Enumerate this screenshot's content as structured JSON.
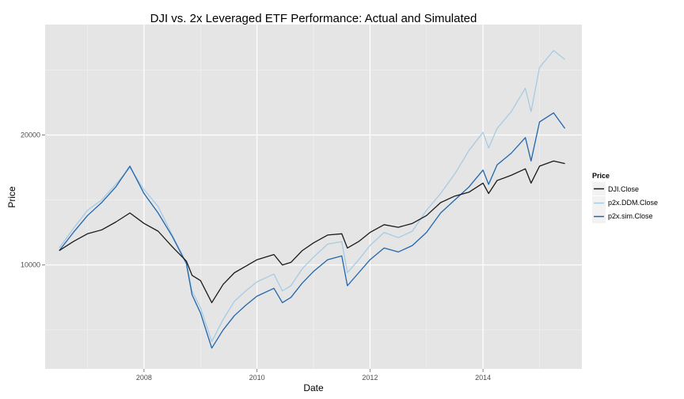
{
  "chart_data": {
    "type": "line",
    "title": "DJI vs. 2x Leveraged ETF Performance: Actual and Simulated",
    "xlabel": "Date",
    "ylabel": "Price",
    "xlim": [
      2006.25,
      2015.75
    ],
    "ylim": [
      2000,
      28500
    ],
    "x_ticks": [
      2008,
      2010,
      2012,
      2014
    ],
    "x_tick_labels": [
      "2008",
      "2010",
      "2012",
      "2014"
    ],
    "y_ticks": [
      10000,
      20000
    ],
    "y_tick_labels": [
      "10000",
      "20000"
    ],
    "grid": true,
    "legend": {
      "title": "Price",
      "position": "right"
    },
    "series": [
      {
        "name": "DJI.Close",
        "color": "#1a1a1a",
        "points": [
          [
            2006.5,
            11100
          ],
          [
            2006.75,
            11800
          ],
          [
            2007.0,
            12400
          ],
          [
            2007.25,
            12700
          ],
          [
            2007.5,
            13300
          ],
          [
            2007.75,
            14000
          ],
          [
            2008.0,
            13200
          ],
          [
            2008.25,
            12600
          ],
          [
            2008.5,
            11400
          ],
          [
            2008.75,
            10300
          ],
          [
            2008.85,
            9200
          ],
          [
            2009.0,
            8800
          ],
          [
            2009.2,
            7100
          ],
          [
            2009.4,
            8500
          ],
          [
            2009.6,
            9400
          ],
          [
            2009.8,
            9900
          ],
          [
            2010.0,
            10400
          ],
          [
            2010.3,
            10800
          ],
          [
            2010.45,
            10000
          ],
          [
            2010.6,
            10200
          ],
          [
            2010.8,
            11100
          ],
          [
            2011.0,
            11700
          ],
          [
            2011.25,
            12300
          ],
          [
            2011.5,
            12400
          ],
          [
            2011.6,
            11300
          ],
          [
            2011.8,
            11800
          ],
          [
            2012.0,
            12500
          ],
          [
            2012.25,
            13100
          ],
          [
            2012.5,
            12900
          ],
          [
            2012.75,
            13200
          ],
          [
            2013.0,
            13800
          ],
          [
            2013.25,
            14800
          ],
          [
            2013.5,
            15300
          ],
          [
            2013.75,
            15600
          ],
          [
            2014.0,
            16300
          ],
          [
            2014.1,
            15500
          ],
          [
            2014.25,
            16500
          ],
          [
            2014.5,
            16900
          ],
          [
            2014.75,
            17400
          ],
          [
            2014.85,
            16300
          ],
          [
            2015.0,
            17600
          ],
          [
            2015.25,
            18000
          ],
          [
            2015.45,
            17800
          ]
        ]
      },
      {
        "name": "p2x.DDM.Close",
        "color": "#a6cbe3",
        "points": [
          [
            2006.5,
            11300
          ],
          [
            2006.75,
            12800
          ],
          [
            2007.0,
            14200
          ],
          [
            2007.25,
            15000
          ],
          [
            2007.5,
            16200
          ],
          [
            2007.75,
            17500
          ],
          [
            2008.0,
            15800
          ],
          [
            2008.25,
            14500
          ],
          [
            2008.5,
            12300
          ],
          [
            2008.75,
            10200
          ],
          [
            2008.85,
            8000
          ],
          [
            2009.0,
            6700
          ],
          [
            2009.2,
            4100
          ],
          [
            2009.4,
            5800
          ],
          [
            2009.6,
            7200
          ],
          [
            2009.8,
            8000
          ],
          [
            2010.0,
            8700
          ],
          [
            2010.3,
            9300
          ],
          [
            2010.45,
            8000
          ],
          [
            2010.6,
            8400
          ],
          [
            2010.8,
            9700
          ],
          [
            2011.0,
            10600
          ],
          [
            2011.25,
            11600
          ],
          [
            2011.5,
            11800
          ],
          [
            2011.6,
            9400
          ],
          [
            2011.8,
            10400
          ],
          [
            2012.0,
            11500
          ],
          [
            2012.25,
            12500
          ],
          [
            2012.5,
            12100
          ],
          [
            2012.75,
            12600
          ],
          [
            2013.0,
            14200
          ],
          [
            2013.25,
            15500
          ],
          [
            2013.5,
            17000
          ],
          [
            2013.75,
            18800
          ],
          [
            2014.0,
            20200
          ],
          [
            2014.1,
            19000
          ],
          [
            2014.25,
            20500
          ],
          [
            2014.5,
            21800
          ],
          [
            2014.75,
            23600
          ],
          [
            2014.85,
            21800
          ],
          [
            2015.0,
            25200
          ],
          [
            2015.25,
            26500
          ],
          [
            2015.45,
            25800
          ]
        ]
      },
      {
        "name": "p2x.sim.Close",
        "color": "#2166ac",
        "points": [
          [
            2006.5,
            11100
          ],
          [
            2006.75,
            12500
          ],
          [
            2007.0,
            13800
          ],
          [
            2007.25,
            14800
          ],
          [
            2007.5,
            16000
          ],
          [
            2007.75,
            17600
          ],
          [
            2008.0,
            15500
          ],
          [
            2008.25,
            14000
          ],
          [
            2008.5,
            12200
          ],
          [
            2008.75,
            10100
          ],
          [
            2008.85,
            7700
          ],
          [
            2009.0,
            6300
          ],
          [
            2009.2,
            3600
          ],
          [
            2009.4,
            5000
          ],
          [
            2009.6,
            6100
          ],
          [
            2009.8,
            6900
          ],
          [
            2010.0,
            7600
          ],
          [
            2010.3,
            8200
          ],
          [
            2010.45,
            7100
          ],
          [
            2010.6,
            7500
          ],
          [
            2010.8,
            8600
          ],
          [
            2011.0,
            9500
          ],
          [
            2011.25,
            10400
          ],
          [
            2011.5,
            10700
          ],
          [
            2011.6,
            8400
          ],
          [
            2011.8,
            9400
          ],
          [
            2012.0,
            10400
          ],
          [
            2012.25,
            11300
          ],
          [
            2012.5,
            11000
          ],
          [
            2012.75,
            11500
          ],
          [
            2013.0,
            12500
          ],
          [
            2013.25,
            14000
          ],
          [
            2013.5,
            15000
          ],
          [
            2013.75,
            16000
          ],
          [
            2014.0,
            17300
          ],
          [
            2014.1,
            16200
          ],
          [
            2014.25,
            17700
          ],
          [
            2014.5,
            18600
          ],
          [
            2014.75,
            19800
          ],
          [
            2014.85,
            18000
          ],
          [
            2015.0,
            21000
          ],
          [
            2015.25,
            21700
          ],
          [
            2015.45,
            20500
          ]
        ]
      }
    ]
  }
}
